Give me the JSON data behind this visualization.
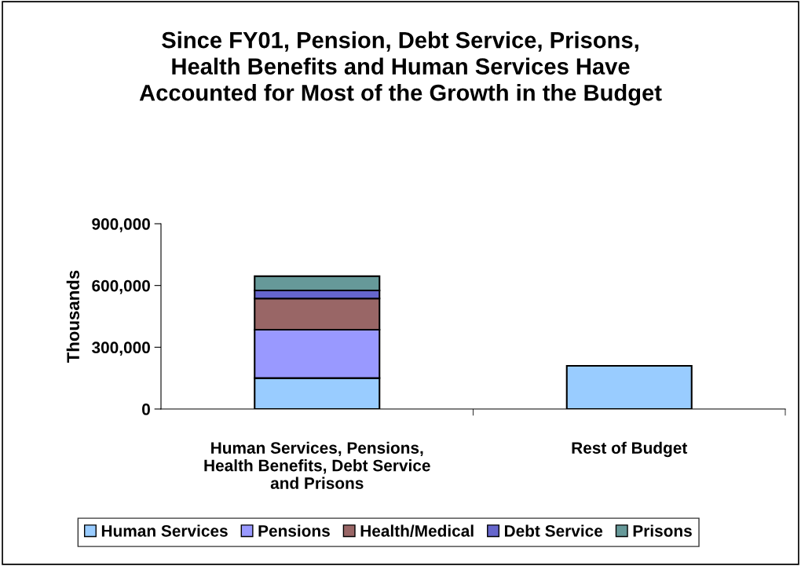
{
  "chart_data": {
    "type": "bar",
    "stacked": true,
    "title": "Since FY01, Pension, Debt Service, Prisons,\nHealth Benefits and Human Services Have\nAccounted for Most of the Growth in the Budget",
    "ylabel": "Thousands",
    "categories": [
      "Human Services, Pensions,\nHealth Benefits, Debt Service\nand Prisons",
      "Rest of Budget"
    ],
    "series": [
      {
        "name": "Human Services",
        "color": "#99ccff",
        "values": [
          150000,
          210000
        ]
      },
      {
        "name": "Pensions",
        "color": "#9999ff",
        "values": [
          235000,
          null
        ]
      },
      {
        "name": "Health/Medical",
        "color": "#996666",
        "values": [
          152000,
          null
        ]
      },
      {
        "name": "Debt Service",
        "color": "#6666cc",
        "values": [
          39000,
          null
        ]
      },
      {
        "name": "Prisons",
        "color": "#669999",
        "values": [
          69000,
          null
        ]
      }
    ],
    "ylim": [
      0,
      900000
    ],
    "yticks": [
      {
        "value": 0,
        "label": "0"
      },
      {
        "value": 300000,
        "label": "300,000"
      },
      {
        "value": 600000,
        "label": "600,000"
      },
      {
        "value": 900000,
        "label": "900,000"
      }
    ],
    "grid": false,
    "legend": "bottom"
  }
}
